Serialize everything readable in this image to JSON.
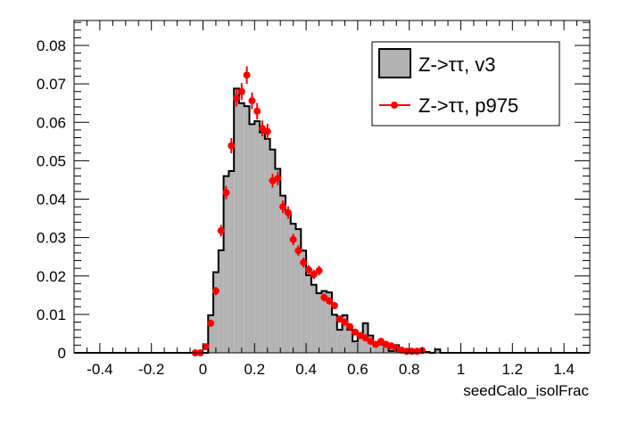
{
  "chart_data": {
    "type": "bar",
    "title": "",
    "xlabel": "seedCalo_isolFrac",
    "ylabel": "",
    "xlim": [
      -0.5,
      1.5
    ],
    "ylim": [
      0,
      0.0865
    ],
    "xticks": [
      "-0.4",
      "-0.2",
      "0",
      "0.2",
      "0.4",
      "0.6",
      "0.8",
      "1",
      "1.2",
      "1.4"
    ],
    "xtick_values": [
      -0.4,
      -0.2,
      0,
      0.2,
      0.4,
      0.6,
      0.8,
      1.0,
      1.2,
      1.4
    ],
    "yticks": [
      "0",
      "0.01",
      "0.02",
      "0.03",
      "0.04",
      "0.05",
      "0.06",
      "0.07",
      "0.08"
    ],
    "ytick_values": [
      0,
      0.01,
      0.02,
      0.03,
      0.04,
      0.05,
      0.06,
      0.07,
      0.08
    ],
    "legend_position": "top-right",
    "series": [
      {
        "name": "Z->ττ, v3",
        "kind": "histogram",
        "fill": "#b3b3b3",
        "line": "#000000",
        "bin_start": 0.02,
        "bin_width": 0.02,
        "values": [
          0.0098,
          0.021,
          0.0267,
          0.046,
          0.0473,
          0.0688,
          0.065,
          0.0642,
          0.0595,
          0.0603,
          0.0574,
          0.0557,
          0.0529,
          0.0479,
          0.0409,
          0.0363,
          0.0336,
          0.0322,
          0.0266,
          0.0202,
          0.0177,
          0.0155,
          0.0161,
          0.0157,
          0.0099,
          0.006,
          0.0098,
          0.006,
          0.003,
          0.0042,
          0.0077,
          0.0045,
          0.0022,
          0.0022,
          0.0018,
          0.0005,
          0.002,
          0.0002,
          0.0002,
          0.0002,
          0.0002,
          0.0002,
          0.0002,
          0,
          0.0009
        ]
      },
      {
        "name": "Z->ττ, p975",
        "kind": "points",
        "color": "#ff0000",
        "x_start": -0.03,
        "x_step": 0.02,
        "values": [
          0,
          0,
          0.0016,
          0.0077,
          0.0161,
          0.0318,
          0.0417,
          0.0539,
          0.0663,
          0.068,
          0.0723,
          0.0656,
          0.0629,
          0.0584,
          0.0576,
          0.0448,
          0.0454,
          0.038,
          0.0365,
          0.0295,
          0.0266,
          0.0235,
          0.0216,
          0.0204,
          0.0214,
          0.0144,
          0.0135,
          0.0123,
          0.0088,
          0.008,
          0.0068,
          0.0054,
          0.0045,
          0.0039,
          0.003,
          0.0022,
          0.003,
          0.0022,
          0.0018,
          0.0012,
          0.0007,
          0.0004,
          0.0004,
          0.0004,
          0.0006
        ]
      }
    ]
  }
}
